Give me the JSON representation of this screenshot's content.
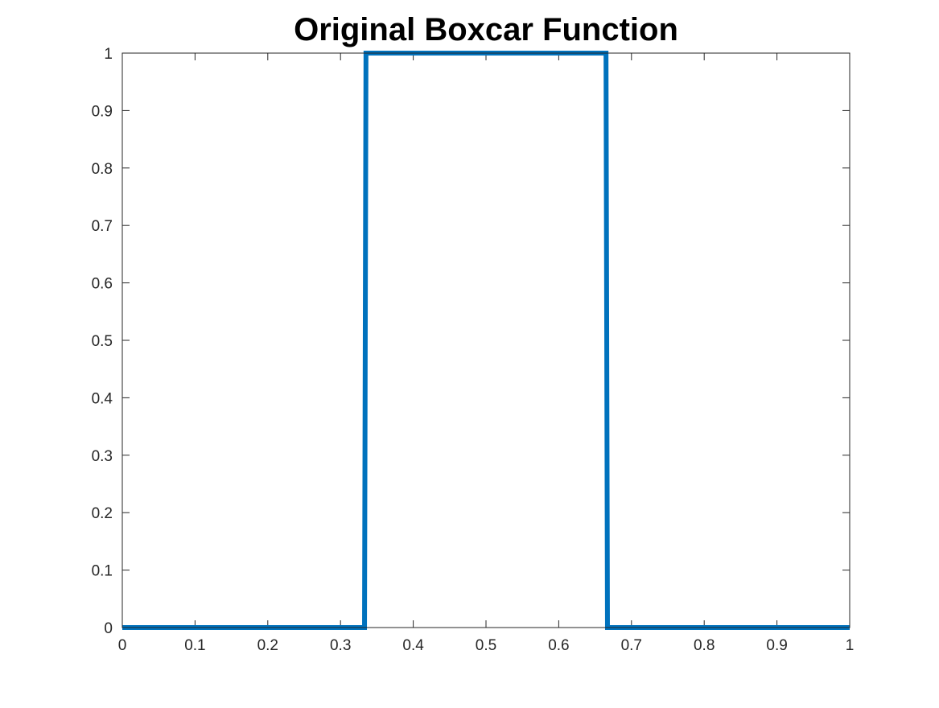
{
  "chart_data": {
    "type": "line",
    "title": "Original Boxcar Function",
    "xlabel": "",
    "ylabel": "",
    "xlim": [
      0,
      1
    ],
    "ylim": [
      0,
      1
    ],
    "x_ticks": [
      "0",
      "0.1",
      "0.2",
      "0.3",
      "0.4",
      "0.5",
      "0.6",
      "0.7",
      "0.8",
      "0.9",
      "1"
    ],
    "y_ticks": [
      "0",
      "0.1",
      "0.2",
      "0.3",
      "0.4",
      "0.5",
      "0.6",
      "0.7",
      "0.8",
      "0.9",
      "1"
    ],
    "grid": false,
    "legend": "none",
    "series": [
      {
        "color": "#0072BD",
        "x": [
          0,
          0.333,
          0.335,
          0.665,
          0.667,
          1
        ],
        "y": [
          0,
          0,
          1,
          1,
          0,
          0
        ]
      }
    ]
  }
}
